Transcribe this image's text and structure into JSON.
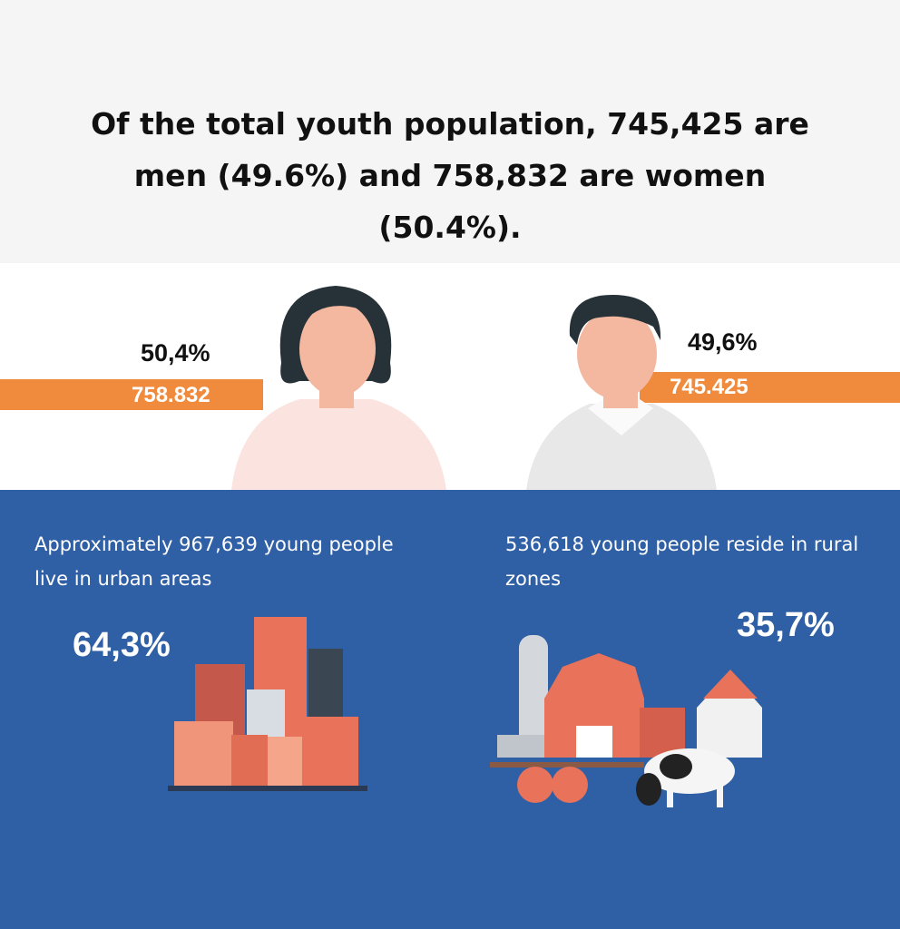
{
  "header": {
    "title": "Of the total youth population, 745,425 are men (49.6%) and 758,832 are women (50.4%)."
  },
  "gender": {
    "women": {
      "percent": "50,4%",
      "count": "758.832"
    },
    "men": {
      "percent": "49,6%",
      "count": "745.425"
    }
  },
  "urban": {
    "text": "Approximately 967,639 young people live in urban areas",
    "percent": "64,3%"
  },
  "rural": {
    "text": "536,618 young people reside in rural zones",
    "percent": "35,7%"
  }
}
